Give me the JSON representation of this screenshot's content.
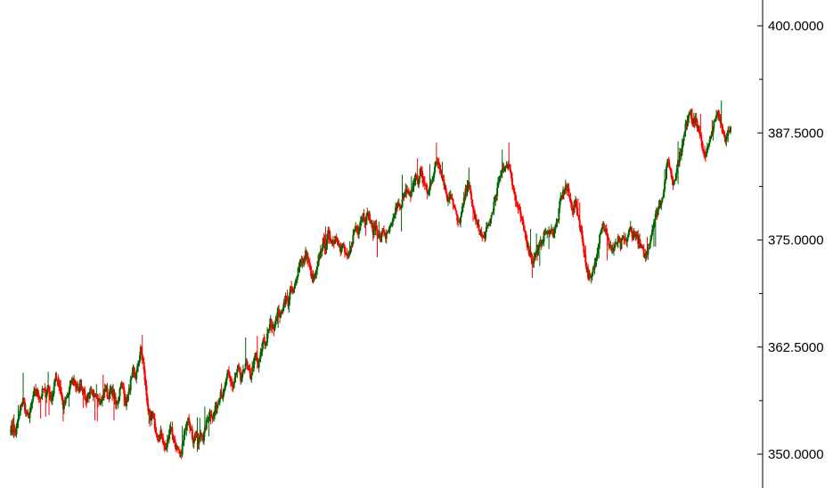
{
  "chart_data": {
    "type": "candlestick",
    "title": "",
    "xlabel": "",
    "ylabel": "",
    "ylim": [
      348.0,
      403.0
    ],
    "y_axis_position": "right",
    "grid": false,
    "legend": "none",
    "y_ticks": [
      {
        "value": 400,
        "label": "400.0000"
      },
      {
        "value": 387.5,
        "label": "387.5000"
      },
      {
        "value": 375,
        "label": "375.0000"
      },
      {
        "value": 362.5,
        "label": "362.5000"
      },
      {
        "value": 350,
        "label": "350.0000"
      }
    ],
    "y_minor_ticks": [
      393.75,
      381.25,
      368.75,
      356.25
    ],
    "colors": {
      "up": "#006400",
      "down": "#ff0000",
      "axis": "#000000",
      "background": "#ffffff"
    },
    "closes": [
      353.2,
      352.8,
      352.5,
      354.0,
      355.5,
      356.4,
      355.0,
      354.2,
      355.2,
      356.8,
      357.5,
      357.0,
      356.6,
      357.6,
      357.0,
      357.8,
      356.5,
      357.2,
      359.0,
      358.6,
      357.4,
      355.5,
      356.2,
      357.0,
      358.2,
      358.8,
      358.0,
      357.4,
      358.2,
      357.6,
      356.2,
      356.8,
      357.0,
      356.4,
      357.2,
      356.6,
      355.8,
      357.0,
      357.8,
      356.6,
      357.5,
      357.2,
      355.8,
      356.4,
      358.2,
      357.6,
      356.0,
      356.8,
      358.4,
      359.4,
      359.0,
      360.4,
      362.2,
      360.6,
      357.8,
      355.2,
      353.8,
      354.8,
      352.5,
      351.6,
      352.8,
      351.2,
      350.4,
      352.0,
      353.4,
      352.0,
      351.0,
      350.2,
      349.8,
      351.5,
      353.2,
      354.6,
      353.0,
      351.6,
      352.4,
      351.2,
      352.6,
      351.8,
      353.2,
      354.4,
      355.0,
      354.2,
      355.6,
      356.0,
      357.4,
      356.6,
      358.2,
      359.4,
      358.6,
      357.8,
      359.2,
      360.0,
      358.6,
      359.4,
      360.8,
      359.8,
      359.0,
      360.4,
      361.6,
      360.2,
      361.6,
      363.4,
      362.8,
      364.2,
      365.4,
      364.6,
      365.8,
      366.6,
      366.0,
      367.4,
      368.2,
      367.6,
      369.2,
      368.6,
      370.2,
      371.6,
      372.8,
      372.2,
      373.4,
      372.6,
      371.2,
      370.4,
      370.8,
      372.2,
      373.6,
      374.8,
      374.2,
      375.8,
      375.2,
      374.6,
      375.4,
      375.0,
      373.6,
      374.4,
      373.2,
      372.6,
      374.0,
      375.4,
      376.6,
      376.0,
      377.4,
      378.0,
      377.2,
      378.2,
      377.0,
      376.0,
      376.6,
      375.6,
      375.0,
      376.2,
      375.4,
      375.8,
      376.4,
      377.2,
      378.6,
      379.2,
      378.4,
      380.0,
      381.2,
      380.4,
      379.8,
      381.6,
      382.4,
      381.6,
      383.2,
      382.0,
      381.0,
      380.4,
      381.6,
      382.6,
      383.8,
      384.2,
      383.2,
      382.2,
      380.8,
      379.6,
      380.6,
      379.4,
      378.2,
      376.8,
      377.6,
      379.0,
      380.6,
      381.6,
      380.2,
      378.6,
      377.2,
      376.4,
      375.8,
      375.2,
      375.8,
      376.6,
      377.4,
      378.8,
      379.8,
      381.4,
      382.8,
      383.6,
      383.2,
      384.0,
      383.0,
      381.2,
      379.6,
      378.6,
      377.8,
      376.6,
      375.6,
      374.0,
      373.2,
      372.6,
      373.4,
      373.8,
      374.6,
      375.2,
      376.0,
      375.6,
      376.4,
      375.8,
      376.6,
      377.6,
      379.8,
      380.4,
      381.2,
      380.6,
      379.4,
      378.6,
      379.2,
      377.8,
      376.4,
      374.6,
      372.4,
      371.0,
      370.2,
      371.4,
      372.6,
      374.4,
      376.2,
      376.8,
      376.0,
      374.8,
      374.2,
      373.8,
      374.4,
      375.0,
      374.2,
      375.2,
      374.8,
      375.6,
      376.4,
      375.4,
      375.8,
      375.0,
      374.2,
      373.6,
      373.0,
      374.0,
      375.2,
      376.8,
      377.8,
      378.6,
      379.4,
      380.4,
      382.4,
      384.4,
      383.0,
      381.6,
      382.6,
      384.2,
      385.2,
      386.4,
      388.2,
      389.6,
      390.0,
      388.6,
      389.2,
      388.0,
      386.8,
      385.6,
      385.0,
      385.8,
      386.8,
      388.2,
      389.0,
      389.8,
      389.0,
      387.6,
      386.8,
      387.8,
      388.2
    ]
  }
}
